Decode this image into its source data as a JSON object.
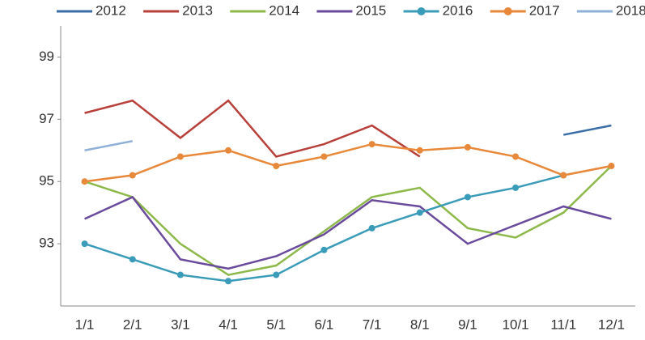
{
  "chart_data": {
    "type": "line",
    "categories": [
      "1/1",
      "2/1",
      "3/1",
      "4/1",
      "5/1",
      "6/1",
      "7/1",
      "8/1",
      "9/1",
      "10/1",
      "11/1",
      "12/1"
    ],
    "series": [
      {
        "name": "2012",
        "color": "#3a6ea8",
        "marker": false,
        "values": [
          null,
          null,
          null,
          null,
          null,
          null,
          null,
          null,
          null,
          null,
          96.5,
          96.8
        ]
      },
      {
        "name": "2013",
        "color": "#b8403a",
        "marker": false,
        "values": [
          97.2,
          97.6,
          96.4,
          97.6,
          95.8,
          96.2,
          96.8,
          95.8,
          null,
          null,
          null,
          null
        ]
      },
      {
        "name": "2014",
        "color": "#8db84a",
        "marker": false,
        "values": [
          95,
          94.5,
          93,
          92,
          92.3,
          93.4,
          94.5,
          94.8,
          93.5,
          93.2,
          94,
          95.5
        ]
      },
      {
        "name": "2015",
        "color": "#6a4a9c",
        "marker": false,
        "values": [
          93.8,
          94.5,
          92.5,
          92.2,
          92.6,
          93.3,
          94.4,
          94.2,
          93,
          93.6,
          94.2,
          93.8
        ]
      },
      {
        "name": "2016",
        "color": "#3a9cb8",
        "marker": true,
        "values": [
          93,
          92.5,
          92,
          91.8,
          92,
          92.8,
          93.5,
          94,
          94.5,
          94.8,
          95.2,
          null
        ]
      },
      {
        "name": "2017",
        "color": "#e8883a",
        "marker": true,
        "values": [
          95,
          95.2,
          95.8,
          96,
          95.5,
          95.8,
          96.2,
          96,
          96.1,
          95.8,
          95.2,
          95.5
        ]
      },
      {
        "name": "2018",
        "color": "#8fb0d8",
        "marker": false,
        "values": [
          96,
          96.3,
          null,
          null,
          null,
          null,
          null,
          null,
          null,
          null,
          null,
          null
        ]
      }
    ],
    "ylim": [
      91,
      100
    ],
    "yticks": [
      93,
      95,
      97,
      99
    ],
    "grid": false
  }
}
